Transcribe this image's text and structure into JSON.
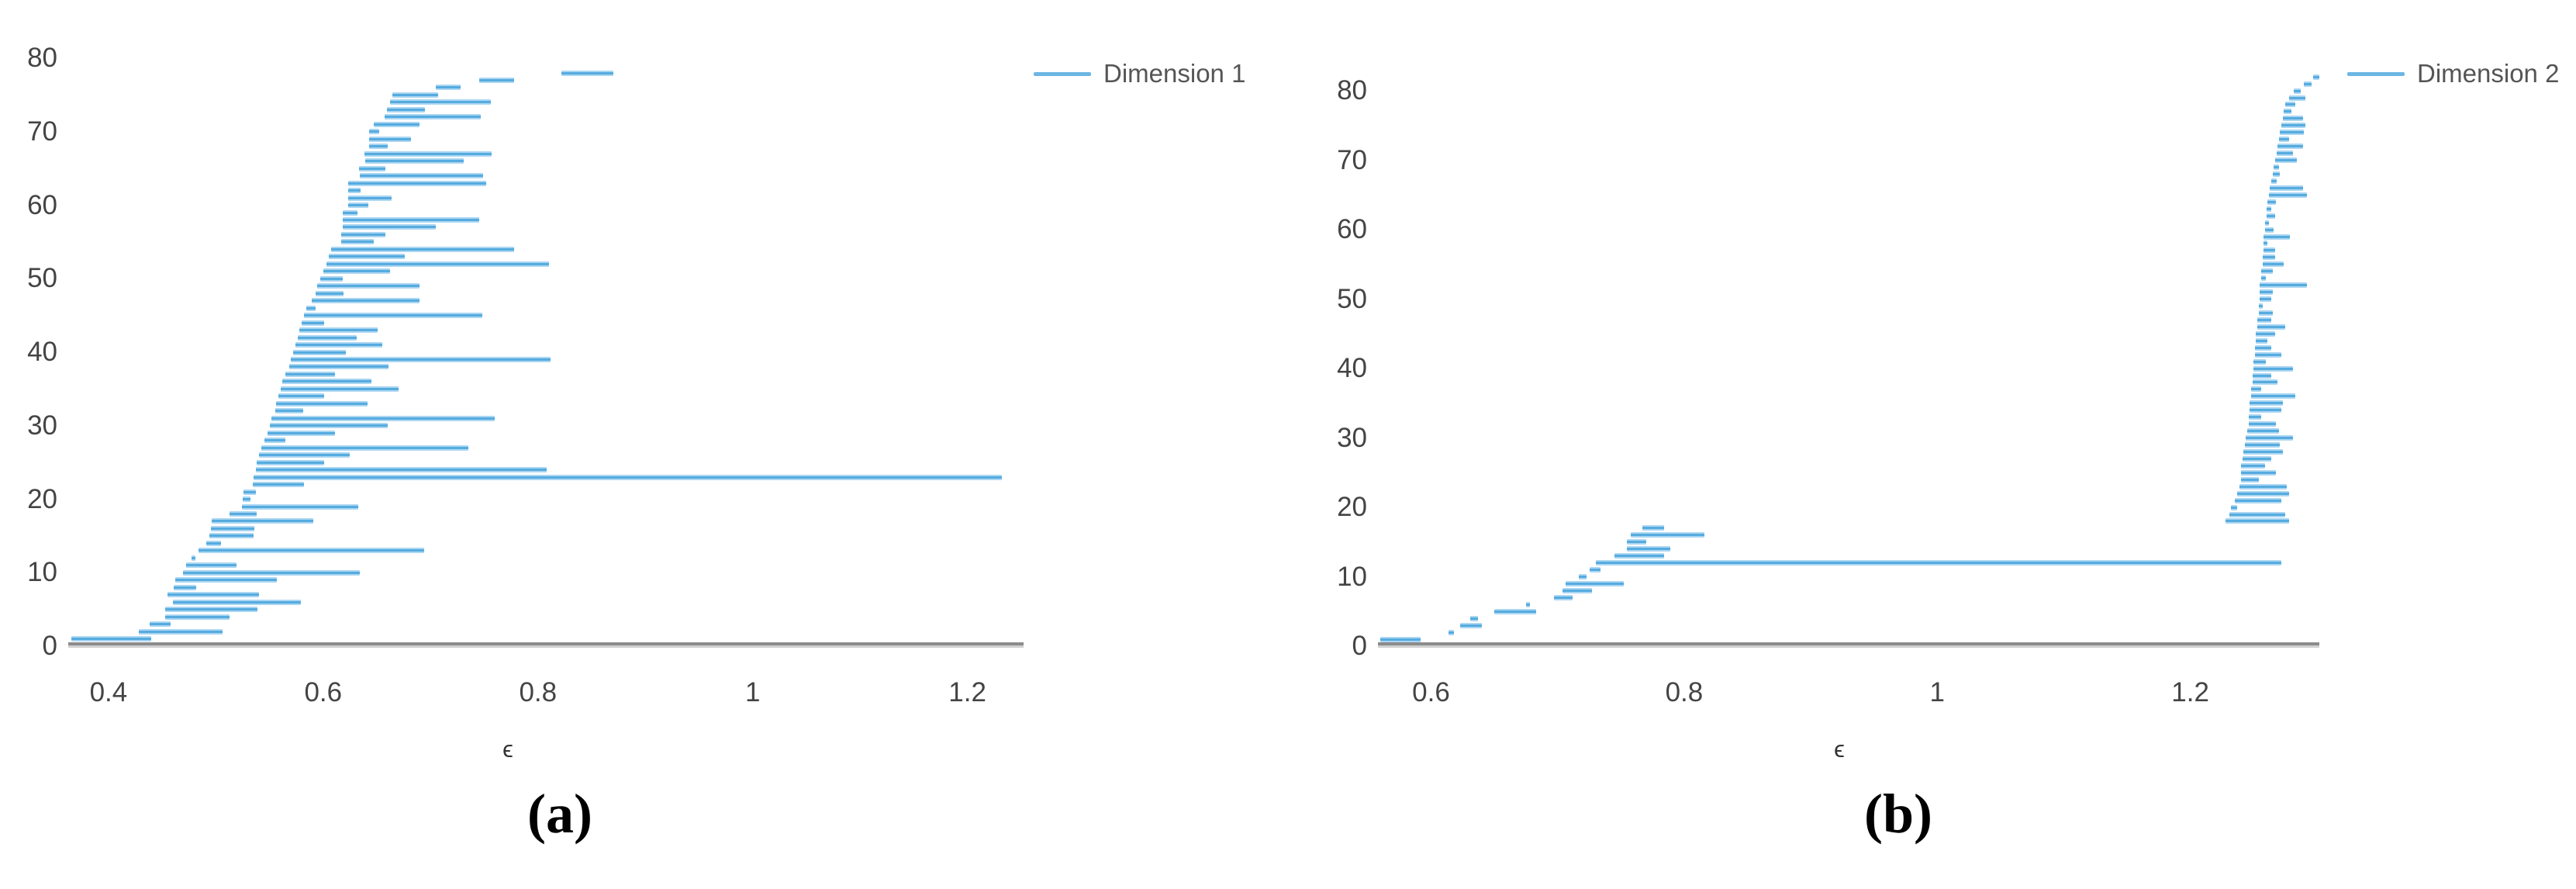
{
  "figure": {
    "caption_a": "(a)",
    "caption_b": "(b)",
    "background": "#ffffff",
    "bar_color_core": "#55abdf",
    "bar_color_halo": "#abd6f2",
    "axis_color": "#8c8c8c",
    "tick_text_color": "#444444",
    "legend_text_color": "#555555"
  },
  "chart_data": [
    {
      "type": "bar",
      "variant": "persistence-barcode",
      "legend": "Dimension 1",
      "xlabel": "ϵ",
      "caption": "(a)",
      "grid": false,
      "legend_position": "top-right-outside",
      "xlim": [
        0.3625,
        1.2523
      ],
      "ylim": [
        0,
        83.7
      ],
      "x_tick_values": [
        0.4,
        0.6,
        0.8,
        1,
        1.2
      ],
      "x_tick_labels": [
        "0.4",
        "0.6",
        "0.8",
        "1",
        "1.2"
      ],
      "y_tick_values": [
        0,
        10,
        20,
        30,
        40,
        50,
        60,
        70,
        80
      ],
      "y_tick_labels": [
        "0",
        "10",
        "20",
        "30",
        "40",
        "50",
        "60",
        "70",
        "80"
      ],
      "bars": [
        [
          0.365,
          0.44
        ],
        [
          0.428,
          0.506
        ],
        [
          0.438,
          0.458
        ],
        [
          0.453,
          0.513
        ],
        [
          0.453,
          0.539
        ],
        [
          0.46,
          0.579
        ],
        [
          0.455,
          0.54
        ],
        [
          0.461,
          0.482
        ],
        [
          0.462,
          0.557
        ],
        [
          0.469,
          0.634
        ],
        [
          0.472,
          0.519
        ],
        [
          0.477,
          0.481
        ],
        [
          0.484,
          0.694
        ],
        [
          0.491,
          0.505
        ],
        [
          0.494,
          0.535
        ],
        [
          0.495,
          0.536
        ],
        [
          0.496,
          0.591
        ],
        [
          0.513,
          0.538
        ],
        [
          0.524,
          0.633
        ],
        [
          0.525,
          0.532
        ],
        [
          0.526,
          0.537
        ],
        [
          0.534,
          0.582
        ],
        [
          0.535,
          1.232
        ],
        [
          0.537,
          0.808
        ],
        [
          0.538,
          0.601
        ],
        [
          0.54,
          0.625
        ],
        [
          0.542,
          0.735
        ],
        [
          0.545,
          0.565
        ],
        [
          0.548,
          0.611
        ],
        [
          0.55,
          0.66
        ],
        [
          0.552,
          0.76
        ],
        [
          0.555,
          0.581
        ],
        [
          0.556,
          0.641
        ],
        [
          0.558,
          0.601
        ],
        [
          0.56,
          0.67
        ],
        [
          0.562,
          0.645
        ],
        [
          0.565,
          0.611
        ],
        [
          0.568,
          0.661
        ],
        [
          0.57,
          0.812
        ],
        [
          0.572,
          0.621
        ],
        [
          0.574,
          0.655
        ],
        [
          0.576,
          0.631
        ],
        [
          0.578,
          0.651
        ],
        [
          0.58,
          0.601
        ],
        [
          0.582,
          0.748
        ],
        [
          0.584,
          0.593
        ],
        [
          0.589,
          0.69
        ],
        [
          0.593,
          0.619
        ],
        [
          0.594,
          0.69
        ],
        [
          0.597,
          0.618
        ],
        [
          0.6,
          0.662
        ],
        [
          0.603,
          0.81
        ],
        [
          0.605,
          0.676
        ],
        [
          0.607,
          0.778
        ],
        [
          0.617,
          0.647
        ],
        [
          0.617,
          0.658
        ],
        [
          0.618,
          0.705
        ],
        [
          0.618,
          0.745
        ],
        [
          0.618,
          0.632
        ],
        [
          0.623,
          0.642
        ],
        [
          0.623,
          0.664
        ],
        [
          0.623,
          0.635
        ],
        [
          0.623,
          0.752
        ],
        [
          0.634,
          0.749
        ],
        [
          0.633,
          0.658
        ],
        [
          0.639,
          0.731
        ],
        [
          0.638,
          0.757
        ],
        [
          0.643,
          0.66
        ],
        [
          0.643,
          0.682
        ],
        [
          0.643,
          0.652
        ],
        [
          0.647,
          0.69
        ],
        [
          0.657,
          0.747
        ],
        [
          0.659,
          0.695
        ],
        [
          0.662,
          0.756
        ],
        [
          0.664,
          0.707
        ],
        [
          0.705,
          0.728
        ],
        [
          0.745,
          0.778
        ],
        [
          0.822,
          0.87
        ]
      ]
    },
    {
      "type": "bar",
      "variant": "persistence-barcode",
      "legend": "Dimension 2",
      "xlabel": "ϵ",
      "caption": "(b)",
      "grid": false,
      "legend_position": "top-right-outside",
      "xlim": [
        0.558,
        1.302
      ],
      "ylim": [
        0,
        88.6
      ],
      "x_tick_values": [
        0.6,
        0.8,
        1,
        1.2
      ],
      "x_tick_labels": [
        "0.6",
        "0.8",
        "1",
        "1.2"
      ],
      "y_tick_values": [
        0,
        10,
        20,
        30,
        40,
        50,
        60,
        70,
        80
      ],
      "y_tick_labels": [
        "0",
        "10",
        "20",
        "30",
        "40",
        "50",
        "60",
        "70",
        "80"
      ],
      "bars": [
        [
          0.56,
          0.592
        ],
        [
          0.614,
          0.618
        ],
        [
          0.623,
          0.64
        ],
        [
          0.631,
          0.637
        ],
        [
          0.65,
          0.683
        ],
        [
          0.675,
          0.678
        ],
        [
          0.697,
          0.712
        ],
        [
          0.704,
          0.727
        ],
        [
          0.706,
          0.752
        ],
        [
          0.717,
          0.723
        ],
        [
          0.725,
          0.734
        ],
        [
          0.73,
          1.272
        ],
        [
          0.745,
          0.784
        ],
        [
          0.755,
          0.789
        ],
        [
          0.755,
          0.77
        ],
        [
          0.758,
          0.816
        ],
        [
          0.767,
          0.784
        ],
        [
          1.228,
          1.278
        ],
        [
          1.231,
          1.275
        ],
        [
          1.232,
          1.237
        ],
        [
          1.235,
          1.272
        ],
        [
          1.237,
          1.278
        ],
        [
          1.239,
          1.276
        ],
        [
          1.24,
          1.254
        ],
        [
          1.24,
          1.268
        ],
        [
          1.24,
          1.259
        ],
        [
          1.241,
          1.264
        ],
        [
          1.242,
          1.273
        ],
        [
          1.243,
          1.271
        ],
        [
          1.244,
          1.281
        ],
        [
          1.245,
          1.27
        ],
        [
          1.246,
          1.268
        ],
        [
          1.246,
          1.256
        ],
        [
          1.247,
          1.272
        ],
        [
          1.247,
          1.273
        ],
        [
          1.248,
          1.283
        ],
        [
          1.248,
          1.256
        ],
        [
          1.249,
          1.269
        ],
        [
          1.249,
          1.264
        ],
        [
          1.25,
          1.281
        ],
        [
          1.25,
          1.26
        ],
        [
          1.251,
          1.272
        ],
        [
          1.251,
          1.264
        ],
        [
          1.252,
          1.261
        ],
        [
          1.252,
          1.267
        ],
        [
          1.253,
          1.275
        ],
        [
          1.253,
          1.264
        ],
        [
          1.254,
          1.265
        ],
        [
          1.254,
          1.257
        ],
        [
          1.255,
          1.264
        ],
        [
          1.255,
          1.265
        ],
        [
          1.255,
          1.292
        ],
        [
          1.256,
          1.26
        ],
        [
          1.256,
          1.265
        ],
        [
          1.257,
          1.274
        ],
        [
          1.257,
          1.267
        ],
        [
          1.258,
          1.267
        ],
        [
          1.258,
          1.261
        ],
        [
          1.258,
          1.279
        ],
        [
          1.259,
          1.266
        ],
        [
          1.259,
          1.262
        ],
        [
          1.26,
          1.267
        ],
        [
          1.26,
          1.264
        ],
        [
          1.261,
          1.268
        ],
        [
          1.262,
          1.292
        ],
        [
          1.263,
          1.289
        ],
        [
          1.264,
          1.268
        ],
        [
          1.265,
          1.271
        ],
        [
          1.266,
          1.27
        ],
        [
          1.267,
          1.284
        ],
        [
          1.268,
          1.281
        ],
        [
          1.269,
          1.289
        ],
        [
          1.27,
          1.278
        ],
        [
          1.271,
          1.29
        ],
        [
          1.272,
          1.291
        ],
        [
          1.273,
          1.289
        ],
        [
          1.274,
          1.28
        ],
        [
          1.275,
          1.283
        ],
        [
          1.278,
          1.291
        ],
        [
          1.282,
          1.287
        ],
        [
          1.29,
          1.296
        ],
        [
          1.297,
          1.303
        ]
      ]
    }
  ]
}
